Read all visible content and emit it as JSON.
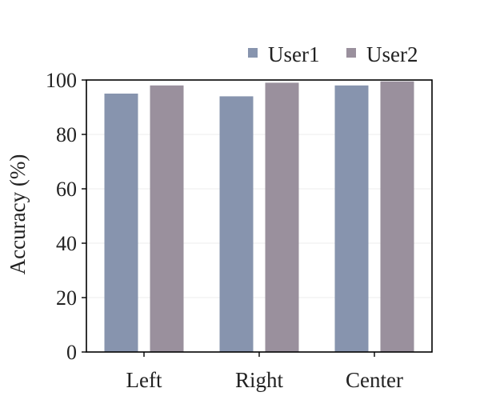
{
  "chart_data": {
    "type": "bar",
    "categories": [
      "Left",
      "Right",
      "Center"
    ],
    "series": [
      {
        "name": "User1",
        "values": [
          95,
          94,
          98
        ],
        "color": "#8794ae"
      },
      {
        "name": "User2",
        "values": [
          98,
          99,
          99.5
        ],
        "color": "#9a909d"
      }
    ],
    "title": "",
    "xlabel": "",
    "ylabel": "Accuracy (%)",
    "ylim": [
      0,
      100
    ],
    "yticks": [
      0,
      20,
      40,
      60,
      80,
      100
    ],
    "grid": true,
    "legend_position": "top-right"
  }
}
